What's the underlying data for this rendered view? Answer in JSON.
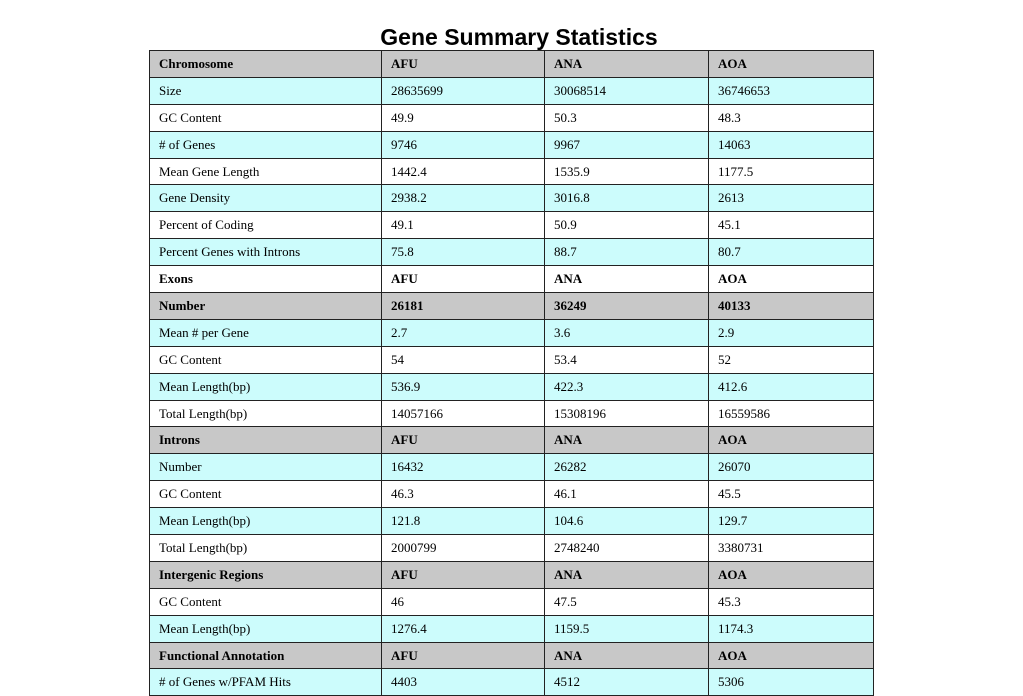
{
  "title": "Gene Summary Statistics",
  "colors": {
    "header_bg": "#c8c8c8",
    "alt_row_bg": "#ccfcfc",
    "plain_row_bg": "#ffffff"
  },
  "rows": [
    {
      "style": "header",
      "cells": [
        "Chromosome",
        "AFU",
        "ANA",
        "AOA"
      ]
    },
    {
      "style": "alt",
      "cells": [
        "Size",
        "28635699",
        "30068514",
        "36746653"
      ]
    },
    {
      "style": "plain",
      "cells": [
        "GC Content",
        "49.9",
        "50.3",
        "48.3"
      ]
    },
    {
      "style": "alt",
      "cells": [
        "# of Genes",
        "9746",
        "9967",
        "14063"
      ]
    },
    {
      "style": "plain",
      "cells": [
        "Mean Gene Length",
        "1442.4",
        "1535.9",
        "1177.5"
      ]
    },
    {
      "style": "alt",
      "cells": [
        "Gene Density",
        "2938.2",
        "3016.8",
        "2613"
      ]
    },
    {
      "style": "plain",
      "cells": [
        "Percent of Coding",
        "49.1",
        "50.9",
        "45.1"
      ]
    },
    {
      "style": "alt",
      "cells": [
        "Percent Genes with Introns",
        "75.8",
        "88.7",
        "80.7"
      ]
    },
    {
      "style": "plain-bold",
      "cells": [
        "Exons",
        "AFU",
        "ANA",
        "AOA"
      ]
    },
    {
      "style": "header",
      "cells": [
        "Number",
        "26181",
        "36249",
        "40133"
      ]
    },
    {
      "style": "alt",
      "cells": [
        "Mean # per Gene",
        "2.7",
        "3.6",
        "2.9"
      ]
    },
    {
      "style": "plain",
      "cells": [
        "GC Content",
        "54",
        "53.4",
        "52"
      ]
    },
    {
      "style": "alt",
      "cells": [
        "Mean Length(bp)",
        "536.9",
        "422.3",
        "412.6"
      ]
    },
    {
      "style": "plain",
      "cells": [
        "Total Length(bp)",
        "14057166",
        "15308196",
        "16559586"
      ]
    },
    {
      "style": "header",
      "cells": [
        "Introns",
        "AFU",
        "ANA",
        "AOA"
      ]
    },
    {
      "style": "alt",
      "cells": [
        "Number",
        "16432",
        "26282",
        "26070"
      ]
    },
    {
      "style": "plain",
      "cells": [
        "GC Content",
        "46.3",
        "46.1",
        "45.5"
      ]
    },
    {
      "style": "alt",
      "cells": [
        "Mean Length(bp)",
        "121.8",
        "104.6",
        "129.7"
      ]
    },
    {
      "style": "plain",
      "cells": [
        "Total Length(bp)",
        "2000799",
        "2748240",
        "3380731"
      ]
    },
    {
      "style": "header",
      "cells": [
        "Intergenic Regions",
        "AFU",
        "ANA",
        "AOA"
      ]
    },
    {
      "style": "plain",
      "cells": [
        "GC Content",
        "46",
        "47.5",
        "45.3"
      ]
    },
    {
      "style": "alt",
      "cells": [
        "Mean Length(bp)",
        "1276.4",
        "1159.5",
        "1174.3"
      ]
    },
    {
      "style": "header",
      "cells": [
        "Functional Annotation",
        "AFU",
        "ANA",
        "AOA"
      ]
    },
    {
      "style": "alt",
      "cells": [
        "# of Genes w/PFAM Hits",
        "4403",
        "4512",
        "5306"
      ]
    }
  ]
}
